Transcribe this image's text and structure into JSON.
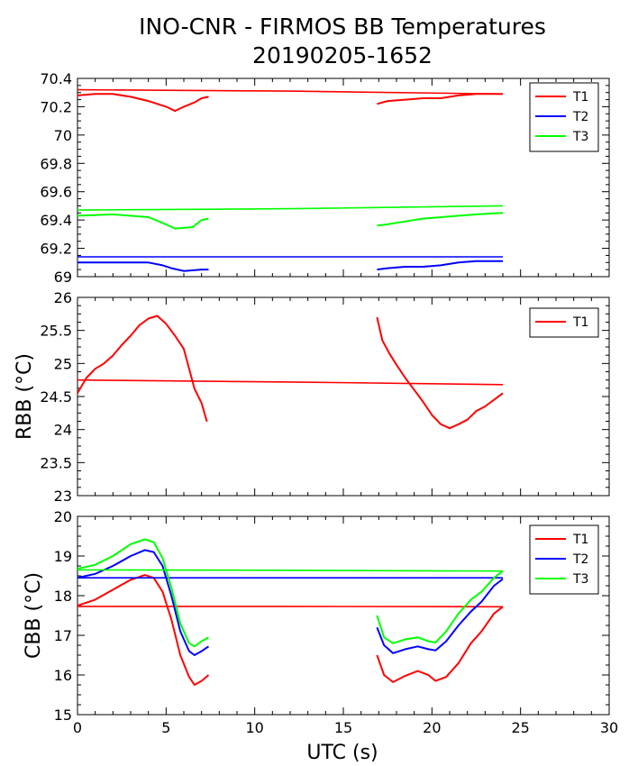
{
  "title": {
    "line1": "INO-CNR - FIRMOS BB Temperatures",
    "line2": "20190205-1652"
  },
  "xlabel": "UTC (s)",
  "colors": {
    "T1": "#ff0000",
    "T2": "#0000ff",
    "T3": "#00ff00"
  },
  "chart_data": [
    {
      "type": "line",
      "panel": "top",
      "ylabel": "",
      "xlim": [
        0,
        30
      ],
      "ylim": [
        69,
        70.4
      ],
      "xticks": [
        "0",
        "5",
        "10",
        "15",
        "20",
        "25",
        "30"
      ],
      "yticks": [
        "69",
        "69.2",
        "69.4",
        "69.6",
        "69.8",
        "70",
        "70.2",
        "70.4"
      ],
      "legend": "top-right",
      "series": [
        {
          "name": "T1",
          "color": "#ff0000",
          "segments": [
            [
              [
                0,
                70.28
              ],
              [
                1,
                70.29
              ],
              [
                2,
                70.29
              ],
              [
                3,
                70.27
              ],
              [
                4,
                70.24
              ],
              [
                5,
                70.2
              ],
              [
                5.5,
                70.17
              ],
              [
                6,
                70.2
              ],
              [
                6.6,
                70.23
              ],
              [
                7,
                70.26
              ],
              [
                7.4,
                70.27
              ]
            ],
            [
              [
                0,
                70.32
              ],
              [
                12,
                70.31
              ],
              [
                24,
                70.29
              ]
            ],
            [
              [
                16.9,
                70.22
              ],
              [
                17.5,
                70.24
              ],
              [
                18.5,
                70.25
              ],
              [
                19.5,
                70.26
              ],
              [
                20.5,
                70.26
              ],
              [
                21.5,
                70.28
              ],
              [
                22.5,
                70.29
              ],
              [
                23.5,
                70.29
              ],
              [
                24,
                70.29
              ]
            ]
          ]
        },
        {
          "name": "T2",
          "color": "#0000ff",
          "segments": [
            [
              [
                0,
                69.1
              ],
              [
                2,
                69.1
              ],
              [
                4,
                69.1
              ],
              [
                4.8,
                69.08
              ],
              [
                5.3,
                69.06
              ],
              [
                6,
                69.04
              ],
              [
                7,
                69.05
              ],
              [
                7.4,
                69.05
              ]
            ],
            [
              [
                0,
                69.14
              ],
              [
                12,
                69.14
              ],
              [
                24,
                69.14
              ]
            ],
            [
              [
                16.9,
                69.05
              ],
              [
                17.5,
                69.06
              ],
              [
                18.5,
                69.07
              ],
              [
                19.5,
                69.07
              ],
              [
                20.5,
                69.08
              ],
              [
                21.5,
                69.1
              ],
              [
                22.5,
                69.11
              ],
              [
                24,
                69.11
              ]
            ]
          ]
        },
        {
          "name": "T3",
          "color": "#00ff00",
          "segments": [
            [
              [
                0,
                69.43
              ],
              [
                2,
                69.44
              ],
              [
                4,
                69.42
              ],
              [
                4.8,
                69.38
              ],
              [
                5.5,
                69.34
              ],
              [
                6.5,
                69.35
              ],
              [
                7,
                69.4
              ],
              [
                7.4,
                69.41
              ]
            ],
            [
              [
                0,
                69.47
              ],
              [
                12,
                69.48
              ],
              [
                24,
                69.5
              ]
            ],
            [
              [
                16.9,
                69.36
              ],
              [
                17.5,
                69.37
              ],
              [
                18.5,
                69.39
              ],
              [
                19.5,
                69.41
              ],
              [
                20.5,
                69.42
              ],
              [
                21.5,
                69.43
              ],
              [
                22.5,
                69.44
              ],
              [
                24,
                69.45
              ]
            ]
          ]
        }
      ]
    },
    {
      "type": "line",
      "panel": "middle",
      "ylabel": "RBB (°C)",
      "xlim": [
        0,
        30
      ],
      "ylim": [
        23,
        26
      ],
      "xticks": [
        "0",
        "5",
        "10",
        "15",
        "20",
        "25",
        "30"
      ],
      "yticks": [
        "23",
        "23.5",
        "24",
        "24.5",
        "25",
        "25.5",
        "26"
      ],
      "legend": "top-right",
      "series": [
        {
          "name": "T1",
          "color": "#ff0000",
          "segments": [
            [
              [
                0,
                24.55
              ],
              [
                0.5,
                24.78
              ],
              [
                1,
                24.92
              ],
              [
                1.5,
                25.0
              ],
              [
                2,
                25.12
              ],
              [
                2.5,
                25.28
              ],
              [
                3,
                25.42
              ],
              [
                3.5,
                25.58
              ],
              [
                4,
                25.68
              ],
              [
                4.5,
                25.72
              ],
              [
                5,
                25.6
              ],
              [
                5.5,
                25.42
              ],
              [
                6,
                25.22
              ],
              [
                6.3,
                24.92
              ],
              [
                6.6,
                24.62
              ],
              [
                7,
                24.4
              ],
              [
                7.3,
                24.12
              ]
            ],
            [
              [
                0,
                24.75
              ],
              [
                12,
                24.72
              ],
              [
                24,
                24.68
              ]
            ],
            [
              [
                16.9,
                25.7
              ],
              [
                17.2,
                25.35
              ],
              [
                17.6,
                25.15
              ],
              [
                18,
                24.98
              ],
              [
                18.5,
                24.78
              ],
              [
                19,
                24.6
              ],
              [
                19.5,
                24.42
              ],
              [
                20,
                24.22
              ],
              [
                20.5,
                24.08
              ],
              [
                21,
                24.02
              ],
              [
                21.5,
                24.08
              ],
              [
                22,
                24.15
              ],
              [
                22.5,
                24.28
              ],
              [
                23,
                24.35
              ],
              [
                23.5,
                24.45
              ],
              [
                24,
                24.55
              ]
            ]
          ]
        }
      ]
    },
    {
      "type": "line",
      "panel": "bottom",
      "ylabel": "CBB (°C)",
      "xlim": [
        0,
        30
      ],
      "ylim": [
        15,
        20
      ],
      "xticks": [
        "0",
        "5",
        "10",
        "15",
        "20",
        "25",
        "30"
      ],
      "yticks": [
        "15",
        "16",
        "17",
        "18",
        "19",
        "20"
      ],
      "legend": "top-right",
      "series": [
        {
          "name": "T1",
          "color": "#ff0000",
          "segments": [
            [
              [
                0,
                17.75
              ],
              [
                1,
                17.9
              ],
              [
                2,
                18.15
              ],
              [
                3,
                18.4
              ],
              [
                3.8,
                18.52
              ],
              [
                4.3,
                18.45
              ],
              [
                4.8,
                18.1
              ],
              [
                5.3,
                17.4
              ],
              [
                5.8,
                16.5
              ],
              [
                6.3,
                15.95
              ],
              [
                6.6,
                15.75
              ],
              [
                7,
                15.85
              ],
              [
                7.4,
                16.0
              ]
            ],
            [
              [
                0,
                17.73
              ],
              [
                12,
                17.73
              ],
              [
                24,
                17.72
              ]
            ],
            [
              [
                16.9,
                16.5
              ],
              [
                17.3,
                16.0
              ],
              [
                17.8,
                15.82
              ],
              [
                18.5,
                15.98
              ],
              [
                19.2,
                16.1
              ],
              [
                19.8,
                16.0
              ],
              [
                20.2,
                15.85
              ],
              [
                20.8,
                15.95
              ],
              [
                21.5,
                16.3
              ],
              [
                22.2,
                16.8
              ],
              [
                22.8,
                17.1
              ],
              [
                23.5,
                17.55
              ],
              [
                24,
                17.72
              ]
            ]
          ]
        },
        {
          "name": "T2",
          "color": "#0000ff",
          "segments": [
            [
              [
                0,
                18.45
              ],
              [
                1,
                18.55
              ],
              [
                2,
                18.75
              ],
              [
                3,
                19.0
              ],
              [
                3.8,
                19.15
              ],
              [
                4.3,
                19.1
              ],
              [
                4.8,
                18.75
              ],
              [
                5.3,
                18.0
              ],
              [
                5.8,
                17.1
              ],
              [
                6.3,
                16.6
              ],
              [
                6.6,
                16.5
              ],
              [
                7,
                16.6
              ],
              [
                7.4,
                16.72
              ]
            ],
            [
              [
                0,
                18.45
              ],
              [
                12,
                18.45
              ],
              [
                24,
                18.45
              ]
            ],
            [
              [
                16.9,
                17.2
              ],
              [
                17.3,
                16.75
              ],
              [
                17.8,
                16.55
              ],
              [
                18.5,
                16.65
              ],
              [
                19.2,
                16.72
              ],
              [
                19.8,
                16.65
              ],
              [
                20.2,
                16.62
              ],
              [
                20.8,
                16.85
              ],
              [
                21.5,
                17.25
              ],
              [
                22.2,
                17.6
              ],
              [
                22.8,
                17.85
              ],
              [
                23.5,
                18.25
              ],
              [
                24,
                18.42
              ]
            ]
          ]
        },
        {
          "name": "T3",
          "color": "#00ff00",
          "segments": [
            [
              [
                0,
                18.68
              ],
              [
                1,
                18.78
              ],
              [
                2,
                19.0
              ],
              [
                3,
                19.3
              ],
              [
                3.8,
                19.42
              ],
              [
                4.3,
                19.35
              ],
              [
                4.8,
                18.95
              ],
              [
                5.3,
                18.2
              ],
              [
                5.8,
                17.3
              ],
              [
                6.3,
                16.8
              ],
              [
                6.6,
                16.72
              ],
              [
                7,
                16.85
              ],
              [
                7.4,
                16.95
              ]
            ],
            [
              [
                0,
                18.65
              ],
              [
                12,
                18.64
              ],
              [
                24,
                18.62
              ]
            ],
            [
              [
                16.9,
                17.5
              ],
              [
                17.3,
                16.95
              ],
              [
                17.8,
                16.8
              ],
              [
                18.5,
                16.9
              ],
              [
                19.2,
                16.95
              ],
              [
                19.8,
                16.85
              ],
              [
                20.2,
                16.82
              ],
              [
                20.8,
                17.1
              ],
              [
                21.5,
                17.55
              ],
              [
                22.2,
                17.9
              ],
              [
                22.8,
                18.1
              ],
              [
                23.5,
                18.45
              ],
              [
                24,
                18.62
              ]
            ]
          ]
        }
      ]
    }
  ]
}
